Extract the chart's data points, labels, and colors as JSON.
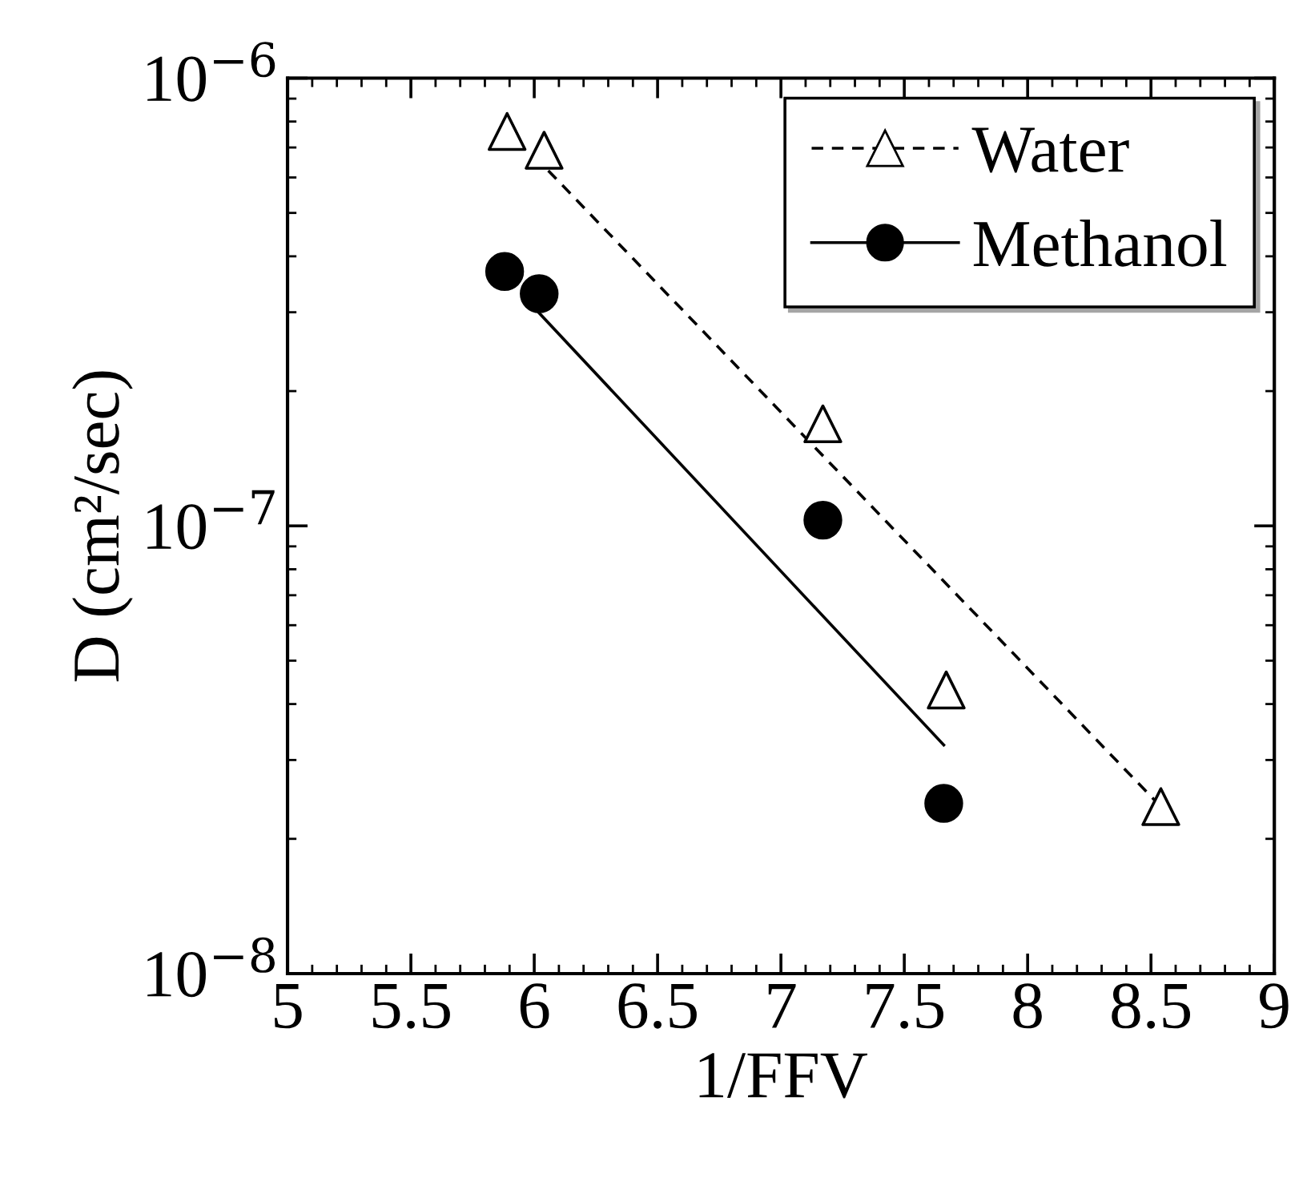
{
  "chart_data": {
    "type": "scatter",
    "xlabel": "1/FFV",
    "ylabel": "D (cm²/sec)",
    "log": "y",
    "xlim": [
      5,
      9
    ],
    "xticks": [
      5,
      5.5,
      6,
      6.5,
      7,
      7.5,
      8,
      8.5,
      9
    ],
    "ylim": [
      1e-08,
      1e-06
    ],
    "yticks": [
      {
        "value": 1e-08,
        "label": "10$^{−8}$"
      },
      {
        "value": 1e-07,
        "label": "10$^{−7}$"
      },
      {
        "value": 1e-06,
        "label": "10$^{−6}$"
      }
    ],
    "grid": false,
    "legend": "top right",
    "series": [
      {
        "name": "Water",
        "color": "#000000",
        "marker": "triangle",
        "line_style": "dashed",
        "x": [
          5.89,
          6.04,
          7.17,
          7.67,
          8.54
        ],
        "values": [
          7.6e-07,
          6.9e-07,
          1.69e-07,
          4.3e-08,
          2.36e-08
        ]
      },
      {
        "name": "Methanol",
        "color": "#000000",
        "marker": "circle",
        "line_style": "solid",
        "x": [
          5.88,
          6.02,
          7.17,
          7.66
        ],
        "values": [
          3.7e-07,
          3.3e-07,
          1.03e-07,
          2.4e-08
        ]
      },
      {
        "type": "line",
        "color": "#000000",
        "marker": "none",
        "line_style": "dashed",
        "x": [
          6.0,
          8.54
        ],
        "values": [
          6.7e-07,
          2.36e-08
        ]
      },
      {
        "type": "line",
        "color": "#000000",
        "marker": "none",
        "line_style": "solid",
        "x": [
          6.0,
          7.66
        ],
        "values": [
          3.07e-07,
          3.24e-08
        ]
      }
    ]
  }
}
